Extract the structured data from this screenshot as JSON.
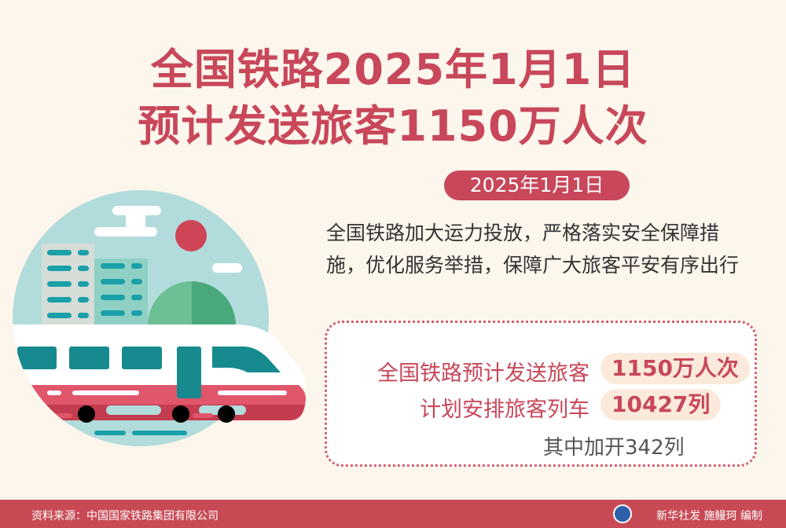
{
  "title": {
    "line1": "全国铁路2025年1月1日",
    "line2": "预计发送旅客1150万人次"
  },
  "date_badge": "2025年1月1日",
  "description": "全国铁路加大运力投放，严格落实安全保障措施，优化服务举措，保障广大旅客平安有序出行",
  "stats": [
    {
      "label": "全国铁路预计发送旅客",
      "value": "1150万人次"
    },
    {
      "label": "计划安排旅客列车",
      "value": "10427列"
    }
  ],
  "note": "其中加开342列",
  "footer": {
    "source": "资料来源：中国国家铁路集团有限公司",
    "credit": "新华社发 施鳗珂 编制",
    "logo_text": "新华社"
  },
  "colors": {
    "accent": "#c8475a",
    "background": "#fdf6ec",
    "teal": "#178a8f",
    "sky": "#b2dcdc"
  }
}
